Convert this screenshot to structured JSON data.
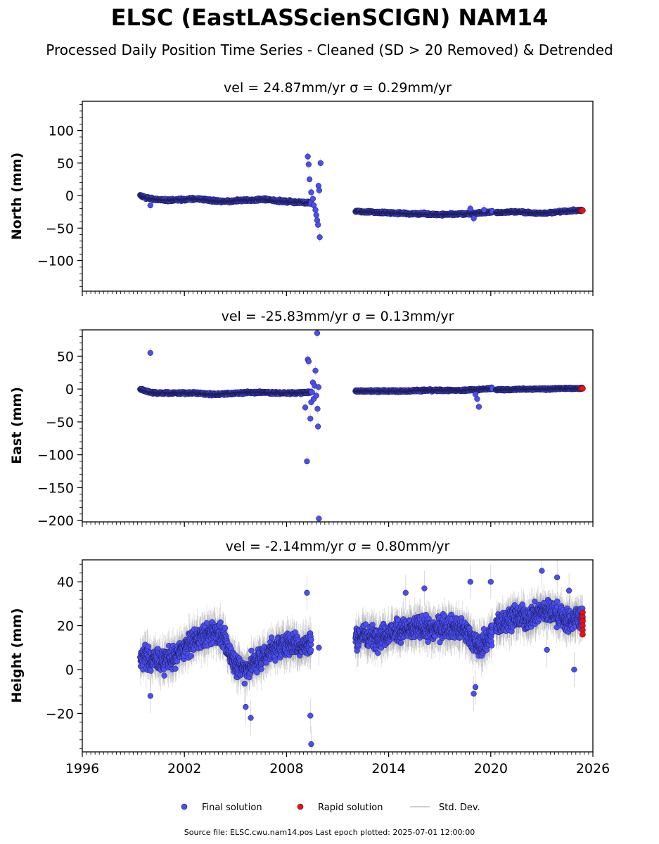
{
  "figure": {
    "title": "ELSC (EastLASScienSCIGN) NAM14",
    "subtitle": "Processed Daily Position Time Series - Cleaned (SD > 20 Removed) & Detrended",
    "footer": "Source file: ELSC.cwu.nam14.pos  Last epoch plotted: 2025-07-01 12:00:00",
    "legend": {
      "position": "bottom-center",
      "items": [
        {
          "label": "Final solution",
          "marker": "circle",
          "color": "#4a4ef2"
        },
        {
          "label": "Rapid solution",
          "marker": "circle",
          "color": "#e8101a"
        },
        {
          "label": "Std. Dev.",
          "marker": "line",
          "color": "#c8c8c8"
        }
      ]
    },
    "colors": {
      "final": "#4a4ef2",
      "final_edge": "#1a1a55",
      "rapid": "#e8101a",
      "stddev": "#8a8a8a"
    }
  },
  "chart_data": [
    {
      "type": "scatter",
      "title": "vel = 24.87mm/yr   σ = 0.29mm/yr",
      "xlabel": "",
      "ylabel": "North (mm)",
      "xlim": [
        1996,
        2026
      ],
      "ylim": [
        -147,
        145
      ],
      "xticks": [
        1996,
        2002,
        2008,
        2014,
        2020,
        2026
      ],
      "yticks": [
        -100,
        -50,
        0,
        50,
        100
      ],
      "ytick_labels": [
        "−100",
        "−50",
        "0",
        "50",
        "100"
      ],
      "show_xtick_labels": false,
      "grid": false,
      "segments": [
        {
          "from": 1999.4,
          "to": 2009.45,
          "values": [
            0,
            -3,
            -5,
            -6,
            -7,
            -7,
            -7,
            -6,
            -6,
            -5,
            -5,
            -6,
            -7,
            -8,
            -9,
            -9,
            -9,
            -8,
            -7,
            -7,
            -7,
            -6,
            -6,
            -7,
            -8,
            -9,
            -9,
            -10,
            -10,
            -11,
            -11
          ],
          "noise": 1.8,
          "sd": 2.2
        },
        {
          "from": 2012.05,
          "to": 2020.1,
          "values": [
            -24,
            -25,
            -25,
            -26,
            -26,
            -27,
            -27,
            -28,
            -28,
            -28,
            -29,
            -29,
            -29,
            -29,
            -28,
            -28,
            -27,
            -26,
            -25
          ],
          "noise": 1.6,
          "sd": 2.4
        },
        {
          "from": 2020.3,
          "to": 2025.4,
          "values": [
            -26,
            -26,
            -25,
            -25,
            -26,
            -27,
            -27,
            -26,
            -25,
            -24,
            -23,
            -23
          ],
          "noise": 1.5,
          "sd": 2.0
        }
      ],
      "outliers": [
        {
          "x": 2000.0,
          "y": -15
        },
        {
          "x": 2009.25,
          "y": 60
        },
        {
          "x": 2009.3,
          "y": 48
        },
        {
          "x": 2009.35,
          "y": 25
        },
        {
          "x": 2009.45,
          "y": 5
        },
        {
          "x": 2009.55,
          "y": -5
        },
        {
          "x": 2009.6,
          "y": -15
        },
        {
          "x": 2009.7,
          "y": -22
        },
        {
          "x": 2009.75,
          "y": -30
        },
        {
          "x": 2009.8,
          "y": -38
        },
        {
          "x": 2009.85,
          "y": -45
        },
        {
          "x": 2009.88,
          "y": 15
        },
        {
          "x": 2009.92,
          "y": 8
        },
        {
          "x": 2009.95,
          "y": -64
        },
        {
          "x": 2010.0,
          "y": 50
        },
        {
          "x": 2018.8,
          "y": -20
        },
        {
          "x": 2019.0,
          "y": -35
        },
        {
          "x": 2019.6,
          "y": -22
        }
      ],
      "rapid": [
        {
          "x": 2025.3,
          "y": -23
        },
        {
          "x": 2025.35,
          "y": -23
        },
        {
          "x": 2025.4,
          "y": -23
        }
      ]
    },
    {
      "type": "scatter",
      "title": "vel = -25.83mm/yr   σ = 0.13mm/yr",
      "xlabel": "",
      "ylabel": "East (mm)",
      "xlim": [
        1996,
        2026
      ],
      "ylim": [
        -202,
        90
      ],
      "xticks": [
        1996,
        2002,
        2008,
        2014,
        2020,
        2026
      ],
      "yticks": [
        -200,
        -150,
        -100,
        -50,
        0,
        50
      ],
      "ytick_labels": [
        "−200",
        "−150",
        "−100",
        "−50",
        "0",
        "50"
      ],
      "show_xtick_labels": false,
      "grid": false,
      "segments": [
        {
          "from": 1999.4,
          "to": 2009.45,
          "values": [
            0,
            -3,
            -5,
            -6,
            -6,
            -6,
            -6,
            -6,
            -6,
            -6,
            -6,
            -7,
            -8,
            -8,
            -8,
            -7,
            -7,
            -6,
            -6,
            -5,
            -5,
            -5,
            -5,
            -6,
            -6,
            -6,
            -6,
            -6,
            -6,
            -5,
            -5
          ],
          "noise": 1.6,
          "sd": 2.0
        },
        {
          "from": 2012.05,
          "to": 2020.1,
          "values": [
            -3,
            -3,
            -3,
            -3,
            -3,
            -3,
            -3,
            -3,
            -2,
            -2,
            -2,
            -2,
            -2,
            -2,
            -2,
            -1,
            -1,
            0,
            1
          ],
          "noise": 1.5,
          "sd": 2.2
        },
        {
          "from": 2020.3,
          "to": 2025.4,
          "values": [
            -1,
            -1,
            -1,
            0,
            0,
            0,
            0,
            0,
            1,
            1,
            1,
            1
          ],
          "noise": 1.3,
          "sd": 1.8
        }
      ],
      "outliers": [
        {
          "x": 2000.0,
          "y": 55
        },
        {
          "x": 2009.1,
          "y": -28
        },
        {
          "x": 2009.2,
          "y": -110
        },
        {
          "x": 2009.25,
          "y": 45
        },
        {
          "x": 2009.3,
          "y": 42
        },
        {
          "x": 2009.4,
          "y": -45
        },
        {
          "x": 2009.45,
          "y": -20
        },
        {
          "x": 2009.5,
          "y": -5
        },
        {
          "x": 2009.55,
          "y": 10
        },
        {
          "x": 2009.6,
          "y": -15
        },
        {
          "x": 2009.65,
          "y": 5
        },
        {
          "x": 2009.7,
          "y": 28
        },
        {
          "x": 2009.75,
          "y": -10
        },
        {
          "x": 2009.8,
          "y": 85
        },
        {
          "x": 2009.82,
          "y": -30
        },
        {
          "x": 2009.85,
          "y": -57
        },
        {
          "x": 2009.88,
          "y": 3
        },
        {
          "x": 2009.9,
          "y": -197
        },
        {
          "x": 2019.2,
          "y": -15
        },
        {
          "x": 2019.3,
          "y": -27
        },
        {
          "x": 2019.1,
          "y": -8
        }
      ],
      "rapid": [
        {
          "x": 2025.3,
          "y": 1
        },
        {
          "x": 2025.35,
          "y": 1
        },
        {
          "x": 2025.4,
          "y": 1
        }
      ]
    },
    {
      "type": "scatter",
      "title": "vel = -2.14mm/yr   σ = 0.80mm/yr",
      "xlabel": "",
      "ylabel": "Height (mm)",
      "xlim": [
        1996,
        2026
      ],
      "ylim": [
        -37.5,
        50
      ],
      "xticks": [
        1996,
        2002,
        2008,
        2014,
        2020,
        2026
      ],
      "xtick_labels": [
        "1996",
        "2002",
        "2008",
        "2014",
        "2020",
        "2026"
      ],
      "yticks": [
        -20,
        0,
        20,
        40
      ],
      "ytick_labels": [
        "−20",
        "0",
        "20",
        "40"
      ],
      "show_xtick_labels": true,
      "grid": false,
      "segments": [
        {
          "from": 1999.4,
          "to": 2009.45,
          "values": [
            5,
            6,
            4,
            5,
            3,
            6,
            5,
            8,
            10,
            12,
            14,
            15,
            16,
            18,
            16,
            12,
            6,
            2,
            0,
            1,
            3,
            5,
            7,
            9,
            10,
            11,
            12,
            12,
            10,
            11,
            12
          ],
          "noise": 5.0,
          "sd": 6.5
        },
        {
          "from": 2012.05,
          "to": 2020.1,
          "values": [
            14,
            16,
            15,
            15,
            16,
            17,
            18,
            18,
            19,
            19,
            18,
            19,
            20,
            19,
            18,
            16,
            10,
            12,
            17
          ],
          "noise": 5.0,
          "sd": 6.5
        },
        {
          "from": 2020.3,
          "to": 2025.4,
          "values": [
            20,
            22,
            24,
            24,
            23,
            25,
            27,
            26,
            25,
            22,
            23,
            24
          ],
          "noise": 5.0,
          "sd": 6.5
        }
      ],
      "outliers": [
        {
          "x": 2000.0,
          "y": -12
        },
        {
          "x": 2005.6,
          "y": -17
        },
        {
          "x": 2005.9,
          "y": -22
        },
        {
          "x": 2009.2,
          "y": 35
        },
        {
          "x": 2009.4,
          "y": -21
        },
        {
          "x": 2009.45,
          "y": -34
        },
        {
          "x": 2009.9,
          "y": 10
        },
        {
          "x": 2015.0,
          "y": 35
        },
        {
          "x": 2016.1,
          "y": 37
        },
        {
          "x": 2018.8,
          "y": 40
        },
        {
          "x": 2019.0,
          "y": -11
        },
        {
          "x": 2019.1,
          "y": -8
        },
        {
          "x": 2020.0,
          "y": 40
        },
        {
          "x": 2023.0,
          "y": 45
        },
        {
          "x": 2023.9,
          "y": 42
        },
        {
          "x": 2024.6,
          "y": 36
        },
        {
          "x": 2024.9,
          "y": 0
        },
        {
          "x": 2023.3,
          "y": 9
        }
      ],
      "rapid": [
        {
          "x": 2025.4,
          "y": 26
        },
        {
          "x": 2025.4,
          "y": 24
        },
        {
          "x": 2025.4,
          "y": 22
        },
        {
          "x": 2025.4,
          "y": 20
        },
        {
          "x": 2025.4,
          "y": 18
        },
        {
          "x": 2025.4,
          "y": 16
        }
      ]
    }
  ]
}
